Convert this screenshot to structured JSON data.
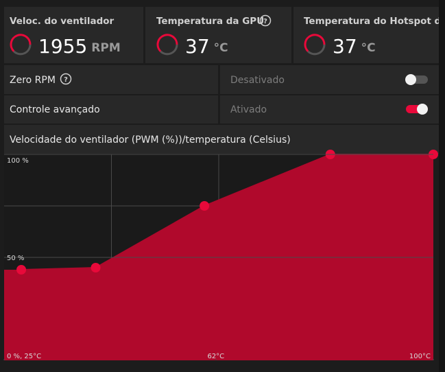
{
  "metrics": [
    {
      "label": "Veloc. do ventilador",
      "value": 1955,
      "unit": "RPM"
    },
    {
      "label": "Temperatura da GPU",
      "value": 37,
      "unit": "°C"
    },
    {
      "label": "Temperatura do Hotspot da G",
      "value": 37,
      "unit": "°C"
    }
  ],
  "settings": [
    {
      "label": "Zero RPM",
      "state": "Desativado",
      "on": false
    },
    {
      "label": "Controle avançado",
      "state": "Ativado",
      "on": true
    }
  ],
  "chart_data": {
    "type": "area",
    "title": "Velocidade do ventilador (PWM (%))/temperatura (Celsius)",
    "x": [
      28,
      41,
      60,
      82,
      100
    ],
    "values": [
      44,
      45,
      75,
      100,
      100
    ],
    "xlim": [
      25,
      100
    ],
    "ylim": [
      0,
      100
    ],
    "xticks": [
      {
        "value": 25,
        "label": "0 %, 25°C"
      },
      {
        "value": 62,
        "label": "62°C"
      },
      {
        "value": 100,
        "label": "100°C"
      }
    ],
    "yticks": [
      {
        "value": 100,
        "label": "100 %"
      },
      {
        "value": 50,
        "label": "50 %"
      }
    ],
    "color": "#b0092c",
    "marker_color": "#e8093a"
  }
}
